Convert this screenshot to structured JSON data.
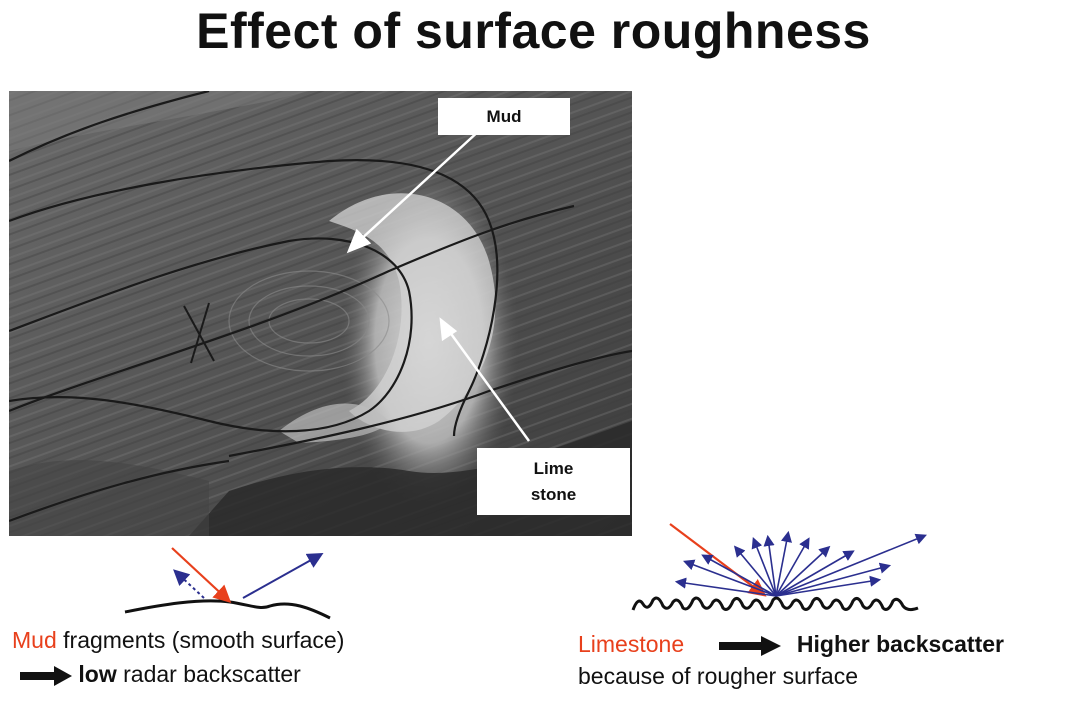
{
  "title": "Effect of surface roughness",
  "image": {
    "labels": {
      "mud": "Mud",
      "limestone_line1": "Lime",
      "limestone_line2": "stone"
    }
  },
  "captions": {
    "left": {
      "red_word": "Mud",
      "line1_rest": " fragments (smooth surface)",
      "line2_bold": "low",
      "line2_rest": " radar  backscatter"
    },
    "right": {
      "red_word": "Limestone",
      "line1_bold": "Higher backscatter",
      "line2": "because of rougher surface"
    }
  },
  "colors": {
    "incident": "#e8401c",
    "scatter": "#2b2f8f",
    "highlight_text": "#e8401c",
    "text": "#111111"
  }
}
